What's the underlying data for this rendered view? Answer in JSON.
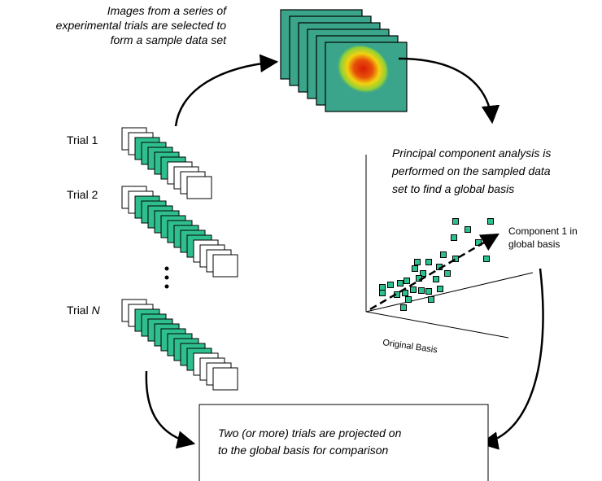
{
  "top_caption": [
    "Images from a series of",
    "experimental trials are selected to",
    "form a sample data set"
  ],
  "trials": [
    "Trial 1",
    "Trial 2"
  ],
  "trial_n": {
    "word": "Trial",
    "variable": "N"
  },
  "pca_caption": [
    "Principal component analysis is",
    "performed on the sampled data",
    "set to find a global basis"
  ],
  "component_label": [
    "Component 1 in",
    "global basis"
  ],
  "original_basis": "Original Basis",
  "result_box": [
    "Two (or more) trials are projected on",
    "to the global basis for comparison"
  ]
}
